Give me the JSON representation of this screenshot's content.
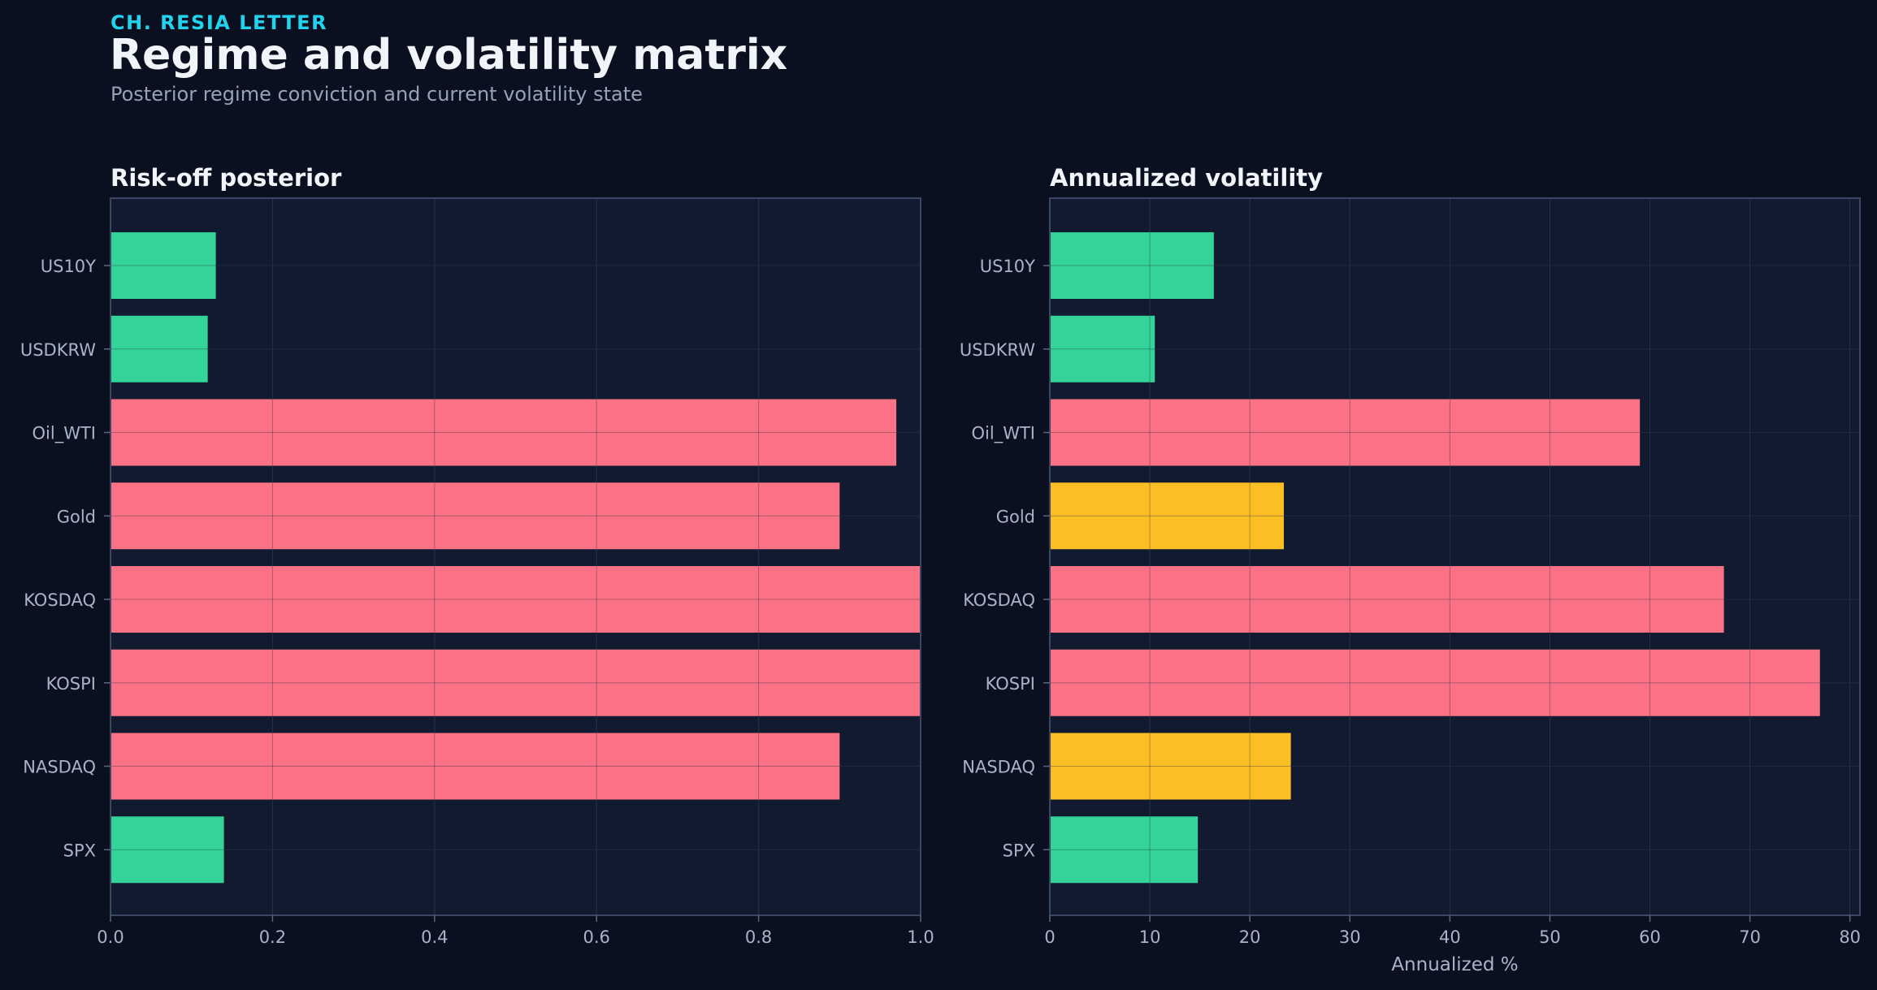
{
  "header": {
    "kicker": "CH. RESIA LETTER",
    "title": "Regime and volatility matrix",
    "subtitle": "Posterior regime conviction and current volatility state"
  },
  "colors": {
    "background": "#0a1020",
    "panel": "#111a2e",
    "kicker": "#22d3ee",
    "low": "#34d399",
    "high": "#fb7185",
    "mid": "#fbbf24"
  },
  "chart_data": [
    {
      "type": "bar",
      "orientation": "horizontal",
      "title": "Risk-off posterior",
      "xlabel": "",
      "categories": [
        "US10Y",
        "USDKRW",
        "Oil_WTI",
        "Gold",
        "KOSDAQ",
        "KOSPI",
        "NASDAQ",
        "SPX"
      ],
      "values": [
        0.13,
        0.12,
        0.97,
        0.9,
        1.0,
        1.0,
        0.9,
        0.14
      ],
      "bar_colors": [
        "#34d399",
        "#34d399",
        "#fb7185",
        "#fb7185",
        "#fb7185",
        "#fb7185",
        "#fb7185",
        "#34d399"
      ],
      "xlim": [
        0,
        1.0
      ],
      "xticks": [
        "0.0",
        "0.2",
        "0.4",
        "0.6",
        "0.8",
        "1.0"
      ],
      "xtick_values": [
        0,
        0.2,
        0.4,
        0.6,
        0.8,
        1.0
      ],
      "grid": true
    },
    {
      "type": "bar",
      "orientation": "horizontal",
      "title": "Annualized volatility",
      "xlabel": "Annualized %",
      "categories": [
        "US10Y",
        "USDKRW",
        "Oil_WTI",
        "Gold",
        "KOSDAQ",
        "KOSPI",
        "NASDAQ",
        "SPX"
      ],
      "values": [
        16.4,
        10.5,
        59.0,
        23.4,
        67.4,
        77.0,
        24.1,
        14.8
      ],
      "bar_colors": [
        "#34d399",
        "#34d399",
        "#fb7185",
        "#fbbf24",
        "#fb7185",
        "#fb7185",
        "#fbbf24",
        "#34d399"
      ],
      "xlim": [
        0,
        81
      ],
      "xticks": [
        "0",
        "10",
        "20",
        "30",
        "40",
        "50",
        "60",
        "70",
        "80"
      ],
      "xtick_values": [
        0,
        10,
        20,
        30,
        40,
        50,
        60,
        70,
        80
      ],
      "grid": true
    }
  ]
}
